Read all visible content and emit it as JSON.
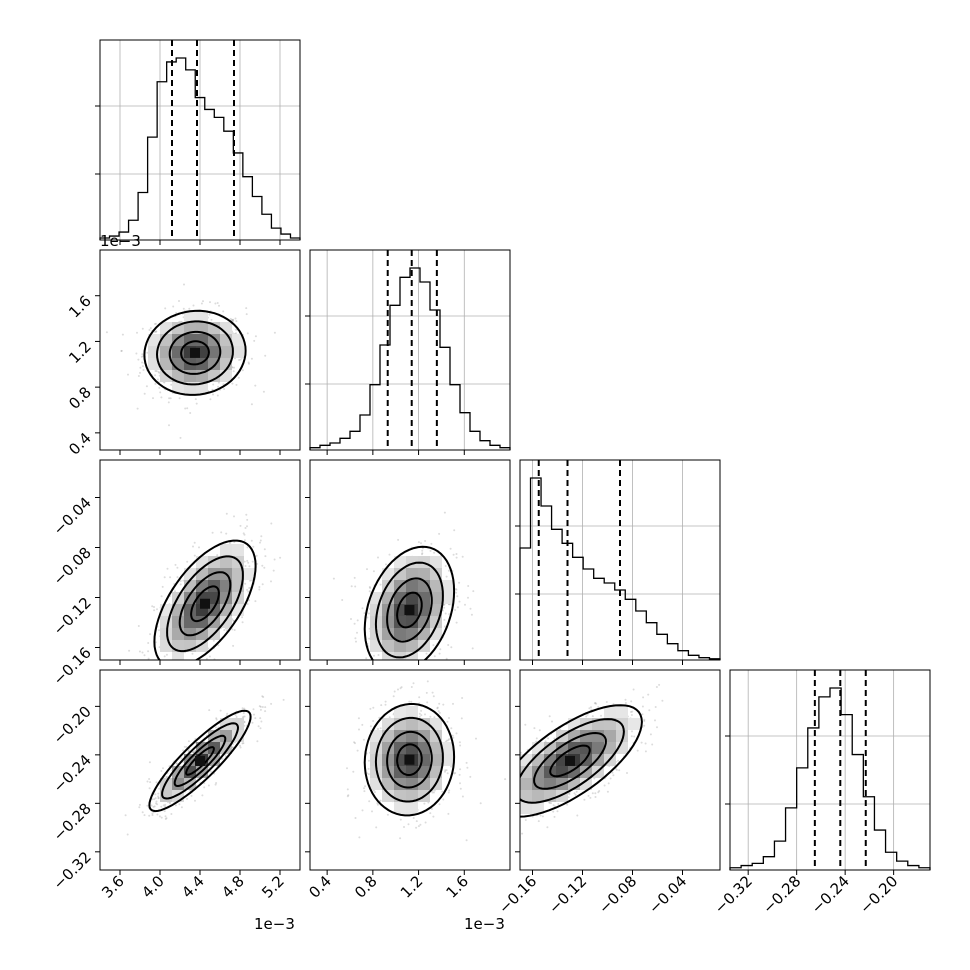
{
  "chart_data": {
    "type": "corner",
    "title": "",
    "parameters": 4,
    "offset_texts": [
      "1e−3",
      "1e−3"
    ],
    "params": [
      {
        "range": [
          3.4,
          5.4
        ],
        "ticks": [
          3.6,
          4.0,
          4.4,
          4.8,
          5.2
        ],
        "tick_labels": [
          "3.6",
          "4.0",
          "4.4",
          "4.8",
          "5.2"
        ],
        "scale": "1e-3",
        "quantiles": [
          4.12,
          4.37,
          4.74
        ],
        "hist": [
          1,
          2,
          4,
          10,
          24,
          52,
          80,
          90,
          92,
          86,
          72,
          66,
          62,
          55,
          44,
          32,
          22,
          13,
          6,
          3,
          1
        ]
      },
      {
        "range": [
          0.25,
          2.0
        ],
        "ticks": [
          0.4,
          0.8,
          1.2,
          1.6
        ],
        "tick_labels": [
          "0.4",
          "0.8",
          "1.2",
          "1.6"
        ],
        "scale": "1e-3",
        "quantiles": [
          0.93,
          1.14,
          1.36
        ],
        "hist": [
          1,
          2,
          3,
          5,
          8,
          15,
          28,
          45,
          62,
          74,
          78,
          72,
          60,
          44,
          28,
          16,
          8,
          4,
          2,
          1
        ]
      },
      {
        "range": [
          -0.17,
          -0.01
        ],
        "ticks": [
          -0.16,
          -0.12,
          -0.08,
          -0.04
        ],
        "tick_labels": [
          "−0.16",
          "−0.12",
          "−0.08",
          "−0.04"
        ],
        "scale": "",
        "quantiles": [
          -0.155,
          -0.132,
          -0.09
        ],
        "hist": [
          48,
          78,
          66,
          56,
          50,
          44,
          39,
          35,
          33,
          30,
          26,
          21,
          16,
          11,
          7,
          4,
          2,
          1,
          0.5
        ]
      },
      {
        "range": [
          -0.335,
          -0.17
        ],
        "ticks": [
          -0.32,
          -0.28,
          -0.24,
          -0.2
        ],
        "tick_labels": [
          "−0.32",
          "−0.28",
          "−0.24",
          "−0.20"
        ],
        "scale": "",
        "quantiles": [
          -0.265,
          -0.244,
          -0.223
        ],
        "hist": [
          1,
          2,
          3,
          6,
          13,
          28,
          46,
          64,
          78,
          82,
          70,
          52,
          33,
          18,
          8,
          4,
          2,
          1
        ]
      }
    ],
    "pairs": [
      {
        "row": 1,
        "col": 0,
        "mean": [
          4.35,
          1.1
        ],
        "std": [
          0.22,
          0.16
        ],
        "corr": 0.05
      },
      {
        "row": 2,
        "col": 0,
        "mean": [
          4.45,
          -0.125
        ],
        "std": [
          0.22,
          0.022
        ],
        "corr": 0.6
      },
      {
        "row": 2,
        "col": 1,
        "mean": [
          1.12,
          -0.13
        ],
        "std": [
          0.17,
          0.022
        ],
        "corr": 0.3
      },
      {
        "row": 3,
        "col": 0,
        "mean": [
          4.4,
          -0.245
        ],
        "std": [
          0.22,
          0.018
        ],
        "corr": 0.88
      },
      {
        "row": 3,
        "col": 1,
        "mean": [
          1.12,
          -0.244
        ],
        "std": [
          0.17,
          0.02
        ],
        "corr": 0.05
      },
      {
        "row": 3,
        "col": 2,
        "mean": [
          -0.13,
          -0.245
        ],
        "std": [
          0.025,
          0.02
        ],
        "corr": 0.7
      }
    ],
    "grid": true
  }
}
